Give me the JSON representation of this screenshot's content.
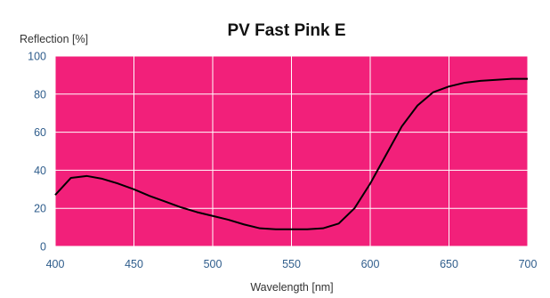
{
  "chart_data": {
    "type": "line",
    "title": "PV Fast Pink E",
    "ylabel": "Reflection [%]",
    "xlabel": "Wavelength [nm]",
    "xlim": [
      400,
      700
    ],
    "ylim": [
      0,
      100
    ],
    "x_ticks": [
      "400",
      "450",
      "500",
      "550",
      "600",
      "650",
      "700"
    ],
    "y_ticks": [
      "0",
      "20",
      "40",
      "60",
      "80",
      "100"
    ],
    "grid": true,
    "colors": {
      "plot_background": "#f2207a",
      "grid": "#ffffff",
      "line": "#000000",
      "tick_text": "#2f5d8c"
    },
    "series": [
      {
        "x": [
          400,
          410,
          420,
          430,
          440,
          450,
          460,
          470,
          480,
          490,
          500,
          510,
          520,
          530,
          540,
          550,
          560,
          570,
          580,
          590,
          600,
          610,
          620,
          630,
          640,
          650,
          660,
          670,
          680,
          690,
          700
        ],
        "y": [
          27,
          36,
          37,
          35.5,
          33,
          30,
          26.5,
          23.5,
          20.5,
          18,
          16,
          14,
          11.5,
          9.5,
          9,
          9,
          9,
          9.5,
          12,
          20,
          33,
          48,
          63,
          74,
          81,
          84,
          86,
          87,
          87.5,
          88,
          88
        ]
      }
    ]
  }
}
